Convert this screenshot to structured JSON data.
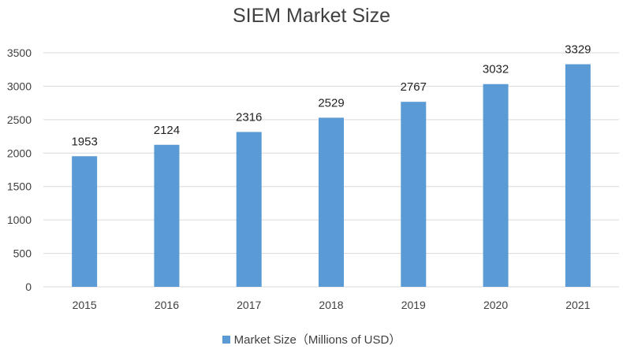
{
  "chart_data": {
    "type": "bar",
    "title": "SIEM Market Size",
    "categories": [
      "2015",
      "2016",
      "2017",
      "2018",
      "2019",
      "2020",
      "2021"
    ],
    "series": [
      {
        "name": "Market Size（Millions of USD）",
        "values": [
          1953,
          2124,
          2316,
          2529,
          2767,
          3032,
          3329
        ]
      }
    ],
    "ylim": [
      0,
      3500
    ],
    "yticks": [
      0,
      500,
      1000,
      1500,
      2000,
      2500,
      3000,
      3500
    ],
    "grid": true,
    "legend_position": "bottom",
    "bar_color": "#5b9bd5",
    "grid_color": "#d9d9d9"
  }
}
